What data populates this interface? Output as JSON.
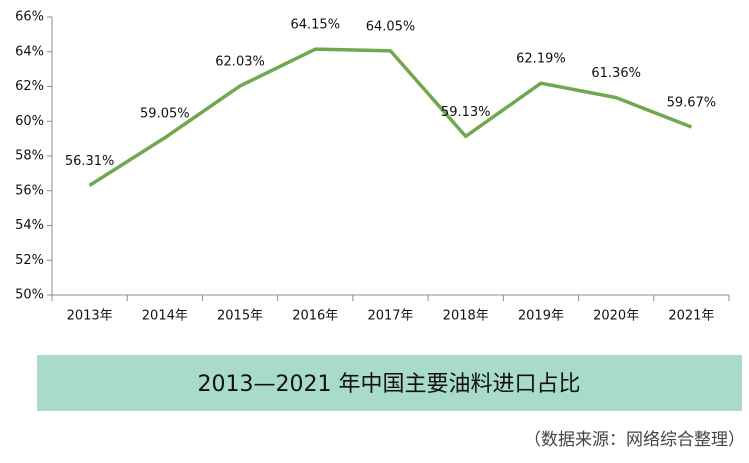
{
  "chart_data": {
    "type": "line",
    "title": "2013—2021 年中国主要油料进口占比",
    "source": "（数据来源：网络综合整理）",
    "categories": [
      "2013年",
      "2014年",
      "2015年",
      "2016年",
      "2017年",
      "2018年",
      "2019年",
      "2020年",
      "2021年"
    ],
    "values": [
      56.31,
      59.05,
      62.03,
      64.15,
      64.05,
      59.13,
      62.19,
      61.36,
      59.67
    ],
    "value_labels": [
      "56.31%",
      "59.05%",
      "62.03%",
      "64.15%",
      "64.05%",
      "59.13%",
      "62.19%",
      "61.36%",
      "59.67%"
    ],
    "color": "#6fa84e",
    "ylim": [
      50,
      66
    ],
    "yticks": [
      {
        "value": 50,
        "label": "50%"
      },
      {
        "value": 52,
        "label": "52%"
      },
      {
        "value": 54,
        "label": "54%"
      },
      {
        "value": 56,
        "label": "56%"
      },
      {
        "value": 58,
        "label": "58%"
      },
      {
        "value": 60,
        "label": "60%"
      },
      {
        "value": 62,
        "label": "62%"
      },
      {
        "value": 64,
        "label": "64%"
      },
      {
        "value": 66,
        "label": "66%"
      }
    ],
    "grid": false
  }
}
